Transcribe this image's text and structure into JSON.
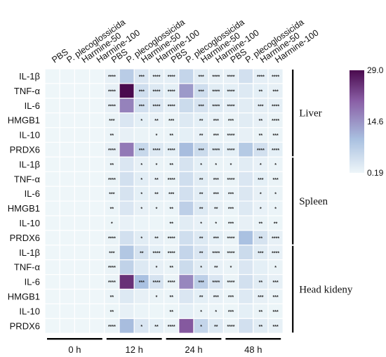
{
  "chart_data": {
    "type": "heatmap",
    "columns": [
      "PBS",
      "P. plecoglossicida",
      "Harmine-50",
      "Harmine-100"
    ],
    "time_groups": [
      "0 h",
      "12 h",
      "24 h",
      "48 h"
    ],
    "tissues": [
      {
        "name": "Liver",
        "rows": [
          "IL-1β",
          "TNF-α",
          "IL-6",
          "HMGB1",
          "IL-10",
          "PRDX6"
        ],
        "values": [
          [
            0.19,
            0.19,
            0.19,
            0.19,
            1.2,
            7.5,
            3.0,
            1.6,
            1.4,
            6.0,
            2.0,
            1.2,
            1.2,
            4.0,
            1.4,
            1.2
          ],
          [
            0.19,
            0.19,
            0.19,
            0.19,
            1.2,
            29.0,
            4.5,
            2.5,
            1.5,
            14.0,
            4.5,
            2.0,
            1.5,
            2.5,
            1.5,
            1.2
          ],
          [
            0.19,
            0.19,
            0.19,
            0.19,
            1.2,
            16.5,
            4.0,
            2.8,
            1.4,
            5.0,
            3.5,
            2.2,
            1.4,
            2.0,
            1.6,
            1.4
          ],
          [
            0.19,
            0.19,
            0.19,
            0.19,
            0.8,
            3.0,
            1.5,
            1.0,
            0.8,
            2.5,
            1.5,
            1.0,
            0.8,
            2.0,
            1.2,
            0.8
          ],
          [
            0.19,
            0.19,
            0.19,
            0.19,
            0.6,
            1.2,
            0.8,
            0.6,
            0.6,
            1.5,
            1.0,
            0.6,
            0.6,
            1.2,
            0.8,
            0.6
          ],
          [
            0.19,
            0.19,
            0.19,
            0.19,
            1.2,
            17.5,
            5.5,
            2.5,
            1.5,
            10.0,
            5.0,
            2.2,
            1.5,
            8.0,
            4.0,
            1.5
          ]
        ],
        "stars": [
          [
            "",
            "",
            "",
            "",
            "****",
            "",
            "***",
            "****",
            "****",
            "",
            "***",
            "****",
            "****",
            "",
            "****",
            "****"
          ],
          [
            "",
            "",
            "",
            "",
            "****",
            "",
            "***",
            "****",
            "****",
            "",
            "***",
            "****",
            "****",
            "",
            "**",
            "***"
          ],
          [
            "",
            "",
            "",
            "",
            "****",
            "",
            "***",
            "****",
            "****",
            "",
            "***",
            "****",
            "****",
            "",
            "***",
            "****"
          ],
          [
            "",
            "",
            "",
            "",
            "***",
            "",
            "*",
            "**",
            "***",
            "",
            "**",
            "***",
            "***",
            "",
            "**",
            "****"
          ],
          [
            "",
            "",
            "",
            "",
            "**",
            "",
            "",
            "*",
            "**",
            "",
            "**",
            "***",
            "****",
            "",
            "**",
            "***"
          ],
          [
            "",
            "",
            "",
            "",
            "****",
            "",
            "***",
            "****",
            "****",
            "",
            "***",
            "****",
            "****",
            "",
            "****",
            "****"
          ]
        ]
      },
      {
        "name": "Spleen",
        "rows": [
          "IL-1β",
          "TNF-α",
          "IL-6",
          "HMGB1",
          "IL-10",
          "PRDX6"
        ],
        "values": [
          [
            0.19,
            0.19,
            0.19,
            0.19,
            0.6,
            3.0,
            1.2,
            0.8,
            0.6,
            3.5,
            1.5,
            0.8,
            0.6,
            2.0,
            1.0,
            0.6
          ],
          [
            0.19,
            0.19,
            0.19,
            0.19,
            0.8,
            4.0,
            1.8,
            1.0,
            0.8,
            4.5,
            2.0,
            1.2,
            0.8,
            3.0,
            1.5,
            0.8
          ],
          [
            0.19,
            0.19,
            0.19,
            0.19,
            0.7,
            3.5,
            1.5,
            1.0,
            0.7,
            4.0,
            1.8,
            1.0,
            0.7,
            2.8,
            1.2,
            0.8
          ],
          [
            0.19,
            0.19,
            0.19,
            0.19,
            0.6,
            3.0,
            1.2,
            0.8,
            0.6,
            7.0,
            2.5,
            1.2,
            0.6,
            2.5,
            1.0,
            0.6
          ],
          [
            0.19,
            0.19,
            0.19,
            0.19,
            0.4,
            1.0,
            0.6,
            0.4,
            0.4,
            2.0,
            1.0,
            0.6,
            0.4,
            1.2,
            0.8,
            0.4
          ],
          [
            0.19,
            0.19,
            0.19,
            0.19,
            0.8,
            4.0,
            2.0,
            1.2,
            0.8,
            4.5,
            2.5,
            1.5,
            0.8,
            9.5,
            3.5,
            1.2
          ]
        ],
        "stars": [
          [
            "",
            "",
            "",
            "",
            "**",
            "",
            "*",
            "*",
            "**",
            "",
            "*",
            "*",
            "*",
            "",
            "*",
            "*"
          ],
          [
            "",
            "",
            "",
            "",
            "****",
            "",
            "*",
            "**",
            "****",
            "",
            "**",
            "***",
            "****",
            "",
            "***",
            "***"
          ],
          [
            "",
            "",
            "",
            "",
            "***",
            "",
            "*",
            "**",
            "***",
            "",
            "**",
            "***",
            "***",
            "",
            "*",
            "*"
          ],
          [
            "",
            "",
            "",
            "",
            "**",
            "",
            "*",
            "*",
            "**",
            "",
            "**",
            "**",
            "***",
            "",
            "*",
            "*"
          ],
          [
            "",
            "",
            "",
            "",
            "*",
            "",
            "",
            "",
            "**",
            "",
            "*",
            "*",
            "***",
            "",
            "**",
            "**"
          ],
          [
            "",
            "",
            "",
            "",
            "****",
            "",
            "*",
            "**",
            "****",
            "",
            "**",
            "***",
            "****",
            "",
            "**",
            "****"
          ]
        ]
      },
      {
        "name": "Head kideny",
        "rows": [
          "IL-1β",
          "TNF-α",
          "IL-6",
          "HMGB1",
          "IL-10",
          "PRDX6"
        ],
        "values": [
          [
            0.19,
            0.19,
            0.19,
            0.19,
            0.8,
            8.5,
            3.5,
            1.5,
            0.8,
            6.0,
            3.0,
            1.2,
            0.8,
            5.0,
            2.0,
            1.0
          ],
          [
            0.19,
            0.19,
            0.19,
            0.19,
            0.8,
            6.5,
            2.5,
            1.2,
            0.8,
            5.0,
            2.0,
            1.0,
            0.8,
            3.0,
            1.5,
            0.8
          ],
          [
            0.19,
            0.19,
            0.19,
            0.19,
            0.8,
            25.0,
            9.5,
            3.5,
            0.8,
            16.0,
            7.0,
            3.0,
            0.8,
            4.0,
            2.0,
            1.2
          ],
          [
            0.19,
            0.19,
            0.19,
            0.19,
            0.6,
            2.5,
            1.2,
            0.8,
            0.6,
            3.0,
            1.5,
            1.0,
            0.6,
            2.5,
            1.2,
            0.6
          ],
          [
            0.19,
            0.19,
            0.19,
            0.19,
            0.4,
            1.2,
            0.6,
            0.4,
            0.4,
            1.5,
            0.8,
            0.6,
            0.4,
            1.5,
            0.8,
            0.4
          ],
          [
            0.19,
            0.19,
            0.19,
            0.19,
            0.8,
            10.0,
            3.0,
            1.5,
            0.8,
            21.0,
            6.0,
            2.5,
            0.8,
            4.0,
            2.0,
            1.2
          ]
        ],
        "stars": [
          [
            "",
            "",
            "",
            "",
            "***",
            "",
            "**",
            "****",
            "****",
            "",
            "**",
            "****",
            "****",
            "",
            "***",
            "****"
          ],
          [
            "",
            "",
            "",
            "",
            "****",
            "",
            "",
            "*",
            "**",
            "",
            "*",
            "**",
            "*",
            "",
            "",
            "*"
          ],
          [
            "",
            "",
            "",
            "",
            "****",
            "",
            "***",
            "****",
            "****",
            "",
            "***",
            "****",
            "****",
            "",
            "**",
            "***"
          ],
          [
            "",
            "",
            "",
            "",
            "**",
            "",
            "",
            "*",
            "**",
            "",
            "**",
            "***",
            "***",
            "",
            "***",
            "***"
          ],
          [
            "",
            "",
            "",
            "",
            "**",
            "",
            "",
            "",
            "**",
            "",
            "*",
            "*",
            "***",
            "",
            "**",
            "***"
          ],
          [
            "",
            "",
            "",
            "",
            "****",
            "",
            "*",
            "**",
            "****",
            "",
            "*",
            "**",
            "****",
            "",
            "**",
            "***"
          ]
        ]
      }
    ],
    "colorbar": {
      "min": 0.19,
      "mid": 14.6,
      "max": 29.0,
      "tick_labels": [
        "29.0",
        "14.6",
        "0.19"
      ],
      "colors": [
        "#eef6f9",
        "#a9c0e0",
        "#8a5fa6",
        "#4a0a4e"
      ]
    },
    "xlabel": "",
    "ylabel": ""
  }
}
